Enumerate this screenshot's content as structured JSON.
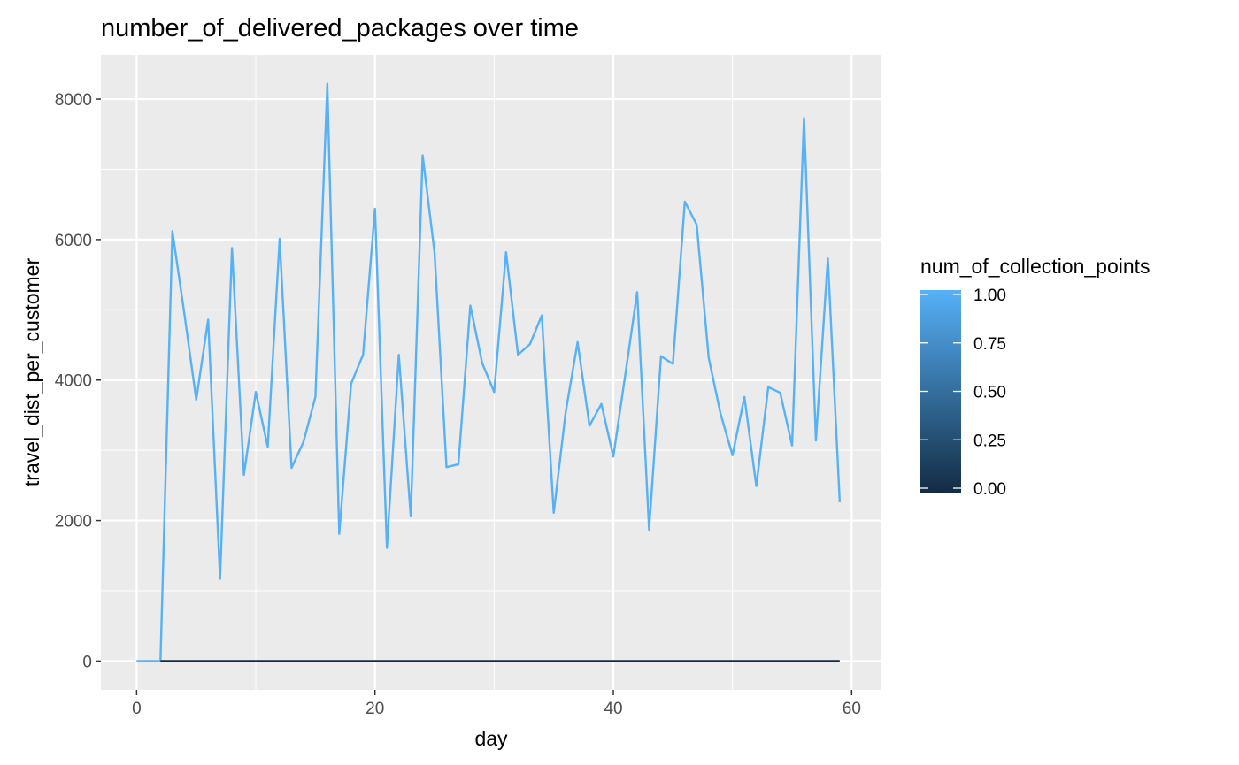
{
  "chart_data": {
    "type": "line",
    "title": "number_of_delivered_packages over time",
    "xlabel": "day",
    "ylabel": "travel_dist_per_customer",
    "xlim": [
      -3,
      62.5
    ],
    "ylim": [
      -410,
      8630
    ],
    "x_ticks": [
      0,
      20,
      40,
      60
    ],
    "x_tick_labels": [
      "0",
      "20",
      "40",
      "60"
    ],
    "y_ticks": [
      0,
      2000,
      4000,
      6000,
      8000
    ],
    "y_tick_labels": [
      "0",
      "2000",
      "4000",
      "6000",
      "8000"
    ],
    "grid": true,
    "legend": {
      "title": "num_of_collection_points",
      "type": "colorbar",
      "placement": "right",
      "range": [
        0,
        1
      ],
      "ticks": [
        0,
        0.25,
        0.5,
        0.75,
        1.0
      ],
      "tick_labels": [
        "0.00",
        "0.25",
        "0.50",
        "0.75",
        "1.00"
      ],
      "low_color": "#132B43",
      "high_color": "#56B1F7"
    },
    "series": [
      {
        "color_value": 1.0,
        "x": [
          0,
          1,
          2,
          3,
          4,
          5,
          6,
          7,
          8,
          9,
          10,
          11,
          12,
          13,
          14,
          15,
          16,
          17,
          18,
          19,
          20,
          21,
          22,
          23,
          24,
          25,
          26,
          27,
          28,
          29,
          30,
          31,
          32,
          33,
          34,
          35,
          36,
          37,
          38,
          39,
          40,
          41,
          42,
          43,
          44,
          45,
          46,
          47,
          48,
          49,
          50,
          51,
          52,
          53,
          54,
          55,
          56,
          57,
          58,
          59
        ],
        "y": [
          0,
          0,
          0,
          6120,
          4950,
          3720,
          4860,
          1170,
          5880,
          2650,
          3830,
          3050,
          6010,
          2750,
          3120,
          3760,
          8220,
          1810,
          3950,
          4360,
          6440,
          1610,
          4360,
          2060,
          7200,
          5810,
          2760,
          2800,
          5060,
          4240,
          3830,
          5820,
          4360,
          4510,
          4920,
          2110,
          3540,
          4540,
          3350,
          3660,
          2910,
          4070,
          5250,
          1870,
          4340,
          4230,
          6540,
          6210,
          4320,
          3520,
          2930,
          3760,
          2490,
          3900,
          3820,
          3070,
          7730,
          3140,
          5730,
          2260
        ]
      },
      {
        "color_value": 0.0,
        "x": [
          2,
          59
        ],
        "y": [
          0,
          0
        ]
      }
    ]
  }
}
